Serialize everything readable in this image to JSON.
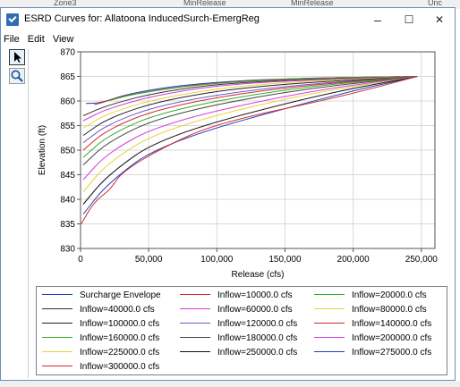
{
  "background_headers": [
    "Zone3",
    "MinRelease",
    "MinRelease",
    "Unc"
  ],
  "window": {
    "title": "ESRD Curves for: Allatoona  InducedSurch-EmergReg",
    "minimize": "–",
    "maximize": "☐",
    "close": "✕"
  },
  "menu": [
    "File",
    "Edit",
    "View"
  ],
  "tools": [
    {
      "name": "select-arrow-icon",
      "glyph": "➤"
    },
    {
      "name": "zoom-magnifier-icon",
      "glyph": "🔍"
    }
  ],
  "chart_data": {
    "type": "line",
    "xlabel": "Release (cfs)",
    "ylabel": "Elevation (ft)",
    "xlim": [
      0,
      260000
    ],
    "ylim": [
      830,
      870
    ],
    "xticks": [
      0,
      50000,
      100000,
      150000,
      200000,
      250000
    ],
    "xtick_labels": [
      "0",
      "50,000",
      "100,000",
      "150,000",
      "200,000",
      "250,000"
    ],
    "yticks": [
      830,
      835,
      840,
      845,
      850,
      855,
      860,
      865,
      870
    ],
    "grid": true,
    "series": [
      {
        "name": "Surcharge Envelope",
        "color": "#1f3fbf",
        "points": [
          [
            4000,
            859.5
          ],
          [
            15000,
            859.6
          ],
          [
            35000,
            861.5
          ],
          [
            80000,
            863.5
          ],
          [
            150000,
            864.6
          ],
          [
            247000,
            865
          ]
        ]
      },
      {
        "name": "Inflow=10000.0 cfs",
        "color": "#d42a2a",
        "points": [
          [
            10000,
            859.3
          ],
          [
            14000,
            859.5
          ],
          [
            30000,
            861
          ],
          [
            80000,
            863.3
          ],
          [
            150000,
            864.6
          ],
          [
            247000,
            865
          ]
        ]
      },
      {
        "name": "Inflow=20000.0 cfs",
        "color": "#2eae2e",
        "points": [
          [
            20000,
            860
          ],
          [
            40000,
            861.5
          ],
          [
            90000,
            863.5
          ],
          [
            160000,
            864.6
          ],
          [
            247000,
            865
          ]
        ]
      },
      {
        "name": "Inflow=40000.0 cfs",
        "color": "#333333",
        "points": [
          [
            2000,
            857
          ],
          [
            20000,
            859.2
          ],
          [
            60000,
            862
          ],
          [
            120000,
            864
          ],
          [
            247000,
            865
          ]
        ]
      },
      {
        "name": "Inflow=60000.0 cfs",
        "color": "#d63bd6",
        "points": [
          [
            2000,
            856
          ],
          [
            20000,
            858.5
          ],
          [
            60000,
            861.5
          ],
          [
            120000,
            863.8
          ],
          [
            247000,
            865
          ]
        ]
      },
      {
        "name": "Inflow=80000.0 cfs",
        "color": "#e8d23a",
        "points": [
          [
            2000,
            854.5
          ],
          [
            20000,
            857.5
          ],
          [
            60000,
            860.8
          ],
          [
            130000,
            863.6
          ],
          [
            247000,
            865
          ]
        ]
      },
      {
        "name": "Inflow=100000.0 cfs",
        "color": "#222222",
        "points": [
          [
            2000,
            853
          ],
          [
            20000,
            856.5
          ],
          [
            60000,
            860.2
          ],
          [
            130000,
            863.2
          ],
          [
            247000,
            865
          ]
        ]
      },
      {
        "name": "Inflow=120000.0 cfs",
        "color": "#6a5acd",
        "points": [
          [
            2000,
            851.5
          ],
          [
            20000,
            855.3
          ],
          [
            60000,
            859.4
          ],
          [
            140000,
            862.9
          ],
          [
            247000,
            865
          ]
        ]
      },
      {
        "name": "Inflow=140000.0 cfs",
        "color": "#d42a2a",
        "points": [
          [
            2000,
            850
          ],
          [
            20000,
            854.3
          ],
          [
            60000,
            858.7
          ],
          [
            140000,
            862.6
          ],
          [
            247000,
            865
          ]
        ]
      },
      {
        "name": "Inflow=160000.0 cfs",
        "color": "#2eae2e",
        "points": [
          [
            2000,
            848.5
          ],
          [
            20000,
            853
          ],
          [
            60000,
            857.9
          ],
          [
            150000,
            862.5
          ],
          [
            247000,
            865
          ]
        ]
      },
      {
        "name": "Inflow=180000.0 cfs",
        "color": "#444444",
        "points": [
          [
            2000,
            847
          ],
          [
            20000,
            851.7
          ],
          [
            60000,
            857
          ],
          [
            150000,
            862
          ],
          [
            247000,
            865
          ]
        ]
      },
      {
        "name": "Inflow=200000.0 cfs",
        "color": "#d63bd6",
        "points": [
          [
            2000,
            844
          ],
          [
            20000,
            849.5
          ],
          [
            60000,
            855.5
          ],
          [
            160000,
            861.7
          ],
          [
            247000,
            865
          ]
        ]
      },
      {
        "name": "Inflow=225000.0 cfs",
        "color": "#e8d23a",
        "points": [
          [
            2000,
            841.5
          ],
          [
            20000,
            847.5
          ],
          [
            60000,
            854.3
          ],
          [
            160000,
            861.2
          ],
          [
            247000,
            865
          ]
        ]
      },
      {
        "name": "Inflow=250000.0 cfs",
        "color": "#111111",
        "points": [
          [
            2000,
            839
          ],
          [
            20000,
            845
          ],
          [
            60000,
            852.8
          ],
          [
            170000,
            861
          ],
          [
            247000,
            865
          ]
        ]
      },
      {
        "name": "Inflow=275000.0 cfs",
        "color": "#1f3fbf",
        "points": [
          [
            2000,
            837
          ],
          [
            20000,
            843.3
          ],
          [
            60000,
            851.5
          ],
          [
            180000,
            860.8
          ],
          [
            247000,
            865
          ]
        ]
      },
      {
        "name": "Inflow=300000.0 cfs",
        "color": "#d42a2a",
        "points": [
          [
            500,
            835
          ],
          [
            10000,
            839.5
          ],
          [
            22000,
            842
          ],
          [
            30000,
            845.5
          ],
          [
            60000,
            850.5
          ],
          [
            100000,
            855.5
          ],
          [
            190000,
            860.8
          ],
          [
            247000,
            865
          ]
        ]
      }
    ]
  }
}
